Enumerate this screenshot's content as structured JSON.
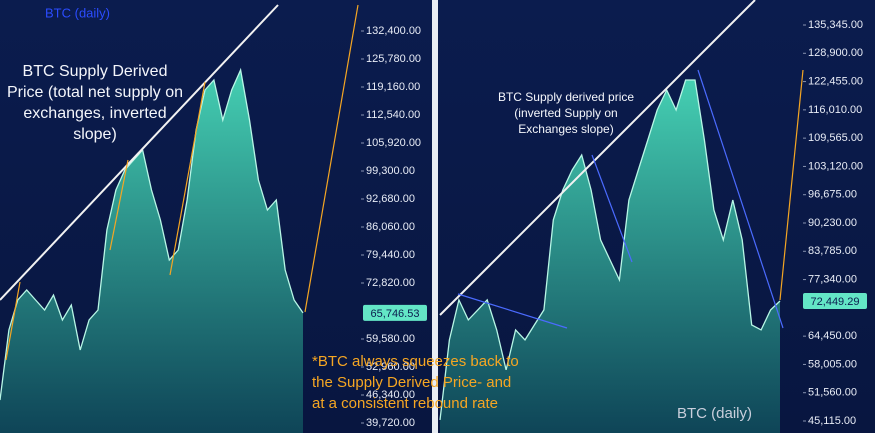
{
  "chart_data": [
    {
      "type": "area",
      "title": "BTC (daily)",
      "annotation": [
        "BTC Supply Derived",
        "Price (total net supply on",
        "exchanges, inverted",
        "slope)"
      ],
      "note": [
        "*BTC always squeezes back to",
        "the Supply Derived Price- and",
        "at a consistent rebound rate"
      ],
      "values": [
        45157,
        61707,
        68800,
        71164,
        68800,
        66436,
        69982,
        64071,
        67618,
        56979,
        64071,
        66436,
        85350,
        94807,
        99536,
        101900,
        104265,
        94807,
        87714,
        78257,
        80622,
        92443,
        108993,
        118450,
        120815,
        111357,
        118450,
        123179,
        111357,
        97172,
        90079,
        92443,
        75893,
        68800,
        65746.53
      ],
      "price_label": "65,746.53",
      "color": "#63e6c6",
      "ylim": [
        37356,
        139729
      ],
      "yticks": [
        {
          "value": 132400,
          "label": "132,400.00"
        },
        {
          "value": 125780,
          "label": "125,780.00"
        },
        {
          "value": 119160,
          "label": "119,160.00"
        },
        {
          "value": 112540,
          "label": "112,540.00"
        },
        {
          "value": 105920,
          "label": "105,920.00"
        },
        {
          "value": 99300,
          "label": "99,300.00"
        },
        {
          "value": 92680,
          "label": "92,680.00"
        },
        {
          "value": 86060,
          "label": "86,060.00"
        },
        {
          "value": 79440,
          "label": "79,440.00"
        },
        {
          "value": 72820,
          "label": "72,820.00"
        },
        {
          "value": 59580,
          "label": "59,580.00"
        },
        {
          "value": 52960,
          "label": "52,960.00"
        },
        {
          "value": 46340,
          "label": "46,340.00"
        },
        {
          "value": 39720,
          "label": "39,720.00"
        }
      ]
    },
    {
      "type": "area",
      "title": "BTC (daily)",
      "annotation": [
        "BTC Supply derived price",
        "(inverted Supply on",
        "Exchanges slope)"
      ],
      "values": [
        45365,
        63589,
        72701,
        68145,
        70423,
        72701,
        65867,
        56755,
        65867,
        63589,
        67006,
        70423,
        90925,
        97759,
        102315,
        105732,
        97759,
        86369,
        81813,
        77257,
        95481,
        102315,
        109149,
        115983,
        120539,
        115983,
        122817,
        122817,
        109149,
        93203,
        86369,
        95481,
        86369,
        67006,
        65867,
        70423,
        72449.29
      ],
      "price_label": "72,449.29",
      "color": "#63e6c6",
      "ylim": [
        42381,
        141041
      ],
      "yticks": [
        {
          "value": 135345,
          "label": "135,345.00"
        },
        {
          "value": 128900,
          "label": "128,900.00"
        },
        {
          "value": 122455,
          "label": "122,455.00"
        },
        {
          "value": 116010,
          "label": "116,010.00"
        },
        {
          "value": 109565,
          "label": "109,565.00"
        },
        {
          "value": 103120,
          "label": "103,120.00"
        },
        {
          "value": 96675,
          "label": "96,675.00"
        },
        {
          "value": 90230,
          "label": "90,230.00"
        },
        {
          "value": 83785,
          "label": "83,785.00"
        },
        {
          "value": 77340,
          "label": "77,340.00"
        },
        {
          "value": 64450,
          "label": "64,450.00"
        },
        {
          "value": 58005,
          "label": "58,005.00"
        },
        {
          "value": 51560,
          "label": "51,560.00"
        },
        {
          "value": 45115,
          "label": "45,115.00"
        }
      ]
    }
  ]
}
